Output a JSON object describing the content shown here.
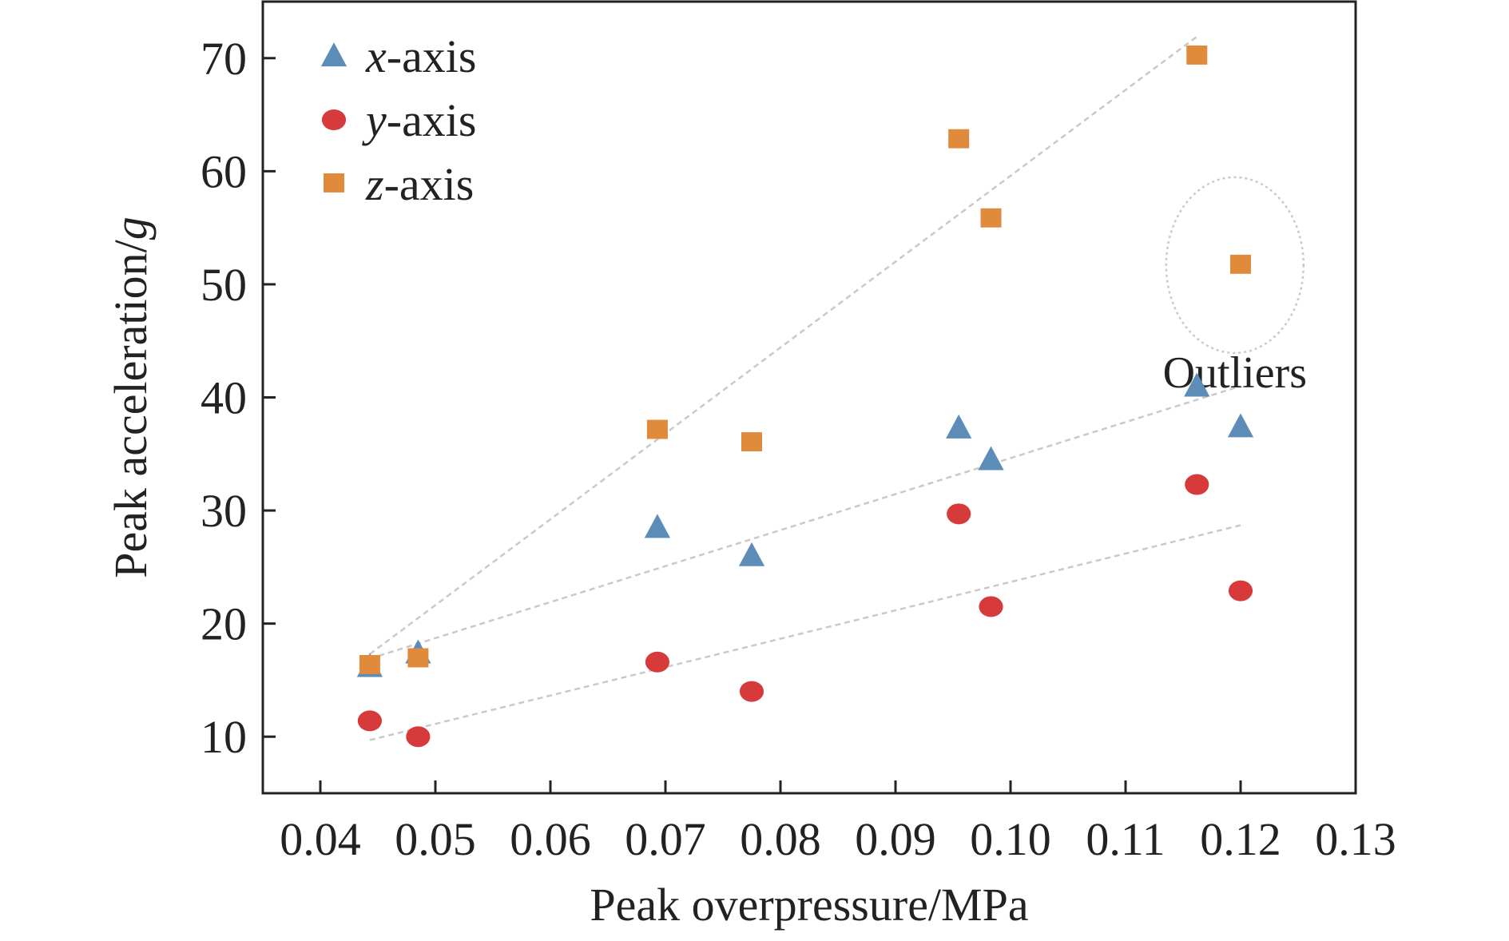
{
  "colors": {
    "x_series": "#5b8db8",
    "y_series": "#d63a3a",
    "z_series": "#e08a3c",
    "axis": "#222222",
    "trend": "#c9c9c9",
    "outlier_ring": "#c9c9c9"
  },
  "chart_data": {
    "type": "scatter",
    "xlabel": "Peak overpressure/MPa",
    "ylabel": "Peak acceleration/g",
    "xlim": [
      0.035,
      0.13
    ],
    "ylim": [
      5,
      75
    ],
    "xticks": [
      "0.04",
      "0.05",
      "0.06",
      "0.07",
      "0.08",
      "0.09",
      "0.10",
      "0.11",
      "0.12",
      "0.13"
    ],
    "yticks": [
      "10",
      "20",
      "30",
      "40",
      "50",
      "60",
      "70"
    ],
    "grid": false,
    "legend_position": "top-left",
    "series": [
      {
        "name": "x-axis",
        "legend_italic": "x",
        "legend_rest": "-axis",
        "marker": "triangle",
        "x": [
          0.0443,
          0.0485,
          0.0693,
          0.0775,
          0.0955,
          0.0983,
          0.1162,
          0.12
        ],
        "y": [
          16.2,
          17.4,
          28.5,
          26.0,
          37.3,
          34.5,
          41.0,
          37.4
        ],
        "trend": [
          [
            0.0443,
            16.9
          ],
          [
            0.12,
            41.0
          ]
        ]
      },
      {
        "name": "y-axis",
        "legend_italic": "y",
        "legend_rest": "-axis",
        "marker": "circle",
        "x": [
          0.0443,
          0.0485,
          0.0693,
          0.0775,
          0.0955,
          0.0983,
          0.1162,
          0.12
        ],
        "y": [
          11.4,
          10.0,
          16.6,
          14.0,
          29.7,
          21.5,
          32.3,
          22.9
        ],
        "trend": [
          [
            0.0443,
            9.7
          ],
          [
            0.12,
            28.7
          ]
        ]
      },
      {
        "name": "z-axis",
        "legend_italic": "z",
        "legend_rest": "-axis",
        "marker": "square",
        "x": [
          0.0443,
          0.0485,
          0.0693,
          0.0775,
          0.0955,
          0.0983,
          0.1162,
          0.12
        ],
        "y": [
          16.3,
          16.9,
          37.1,
          36.0,
          62.8,
          55.8,
          70.2,
          51.7
        ],
        "trend": [
          [
            0.0443,
            17.3
          ],
          [
            0.1162,
            71.9
          ]
        ]
      }
    ],
    "annotations": [
      {
        "text": "Outliers",
        "x": 0.1195,
        "y": 42.3,
        "circle_center": [
          0.1195,
          51.7
        ]
      }
    ]
  }
}
